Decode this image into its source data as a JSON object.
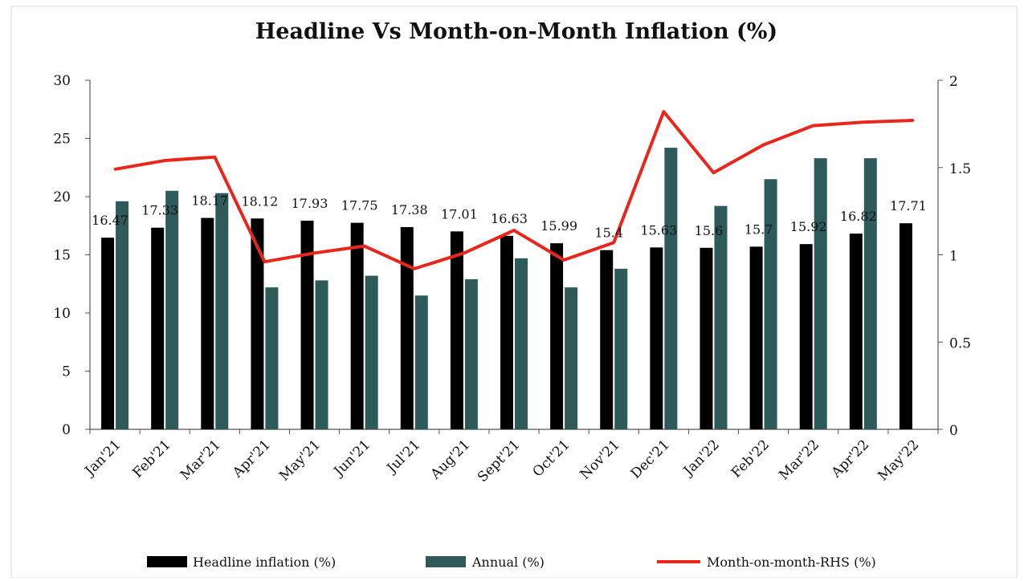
{
  "chart_data": {
    "type": "bar",
    "title": "Headline Vs Month-on-Month Inflation (%)",
    "xlabel": "",
    "ylabel": "",
    "categories": [
      "Jan'21",
      "Feb'21",
      "Mar'21",
      "Apr'21",
      "May'21",
      "Jun'21",
      "Jul'21",
      "Aug'21",
      "Sept'21",
      "Oct'21",
      "Nov'21",
      "Dec'21",
      "Jan'22",
      "Feb'22",
      "Mar'22",
      "Apr'22",
      "May'22"
    ],
    "ylim_left": [
      0,
      30
    ],
    "yticks_left": [
      "0",
      "5",
      "10",
      "15",
      "20",
      "25",
      "30"
    ],
    "ylim_right": [
      0,
      2
    ],
    "yticks_right": [
      "0",
      "0.5",
      "1",
      "1.5",
      "2"
    ],
    "grid": false,
    "legend_position": "bottom",
    "series": [
      {
        "name": "Headline inflation (%)",
        "type": "bar",
        "axis": "left",
        "color": "#000000",
        "values": [
          16.47,
          17.33,
          18.17,
          18.12,
          17.93,
          17.75,
          17.38,
          17.01,
          16.63,
          15.99,
          15.4,
          15.63,
          15.6,
          15.7,
          15.92,
          16.82,
          17.71
        ],
        "labels": [
          "16.47",
          "17.33",
          "18.17",
          "18.12",
          "17.93",
          "17.75",
          "17.38",
          "17.01",
          "16.63",
          "15.99",
          "15.4",
          "15.63",
          "15.6",
          "15.7",
          "15.92",
          "16.82",
          "17.71"
        ]
      },
      {
        "name": "Annual (%)",
        "type": "bar",
        "axis": "left",
        "color": "#2f5a5a",
        "values": [
          19.6,
          20.5,
          20.3,
          12.2,
          12.8,
          13.2,
          11.5,
          12.9,
          14.7,
          12.2,
          13.8,
          24.2,
          19.2,
          21.5,
          23.3,
          23.3,
          null
        ]
      },
      {
        "name": "Month-on-month-RHS (%)",
        "type": "line",
        "axis": "right",
        "color": "#e8261c",
        "values": [
          1.49,
          1.54,
          1.56,
          0.96,
          1.01,
          1.05,
          0.92,
          1.01,
          1.14,
          0.97,
          1.07,
          1.82,
          1.47,
          1.63,
          1.74,
          1.76,
          1.77
        ]
      }
    ]
  }
}
